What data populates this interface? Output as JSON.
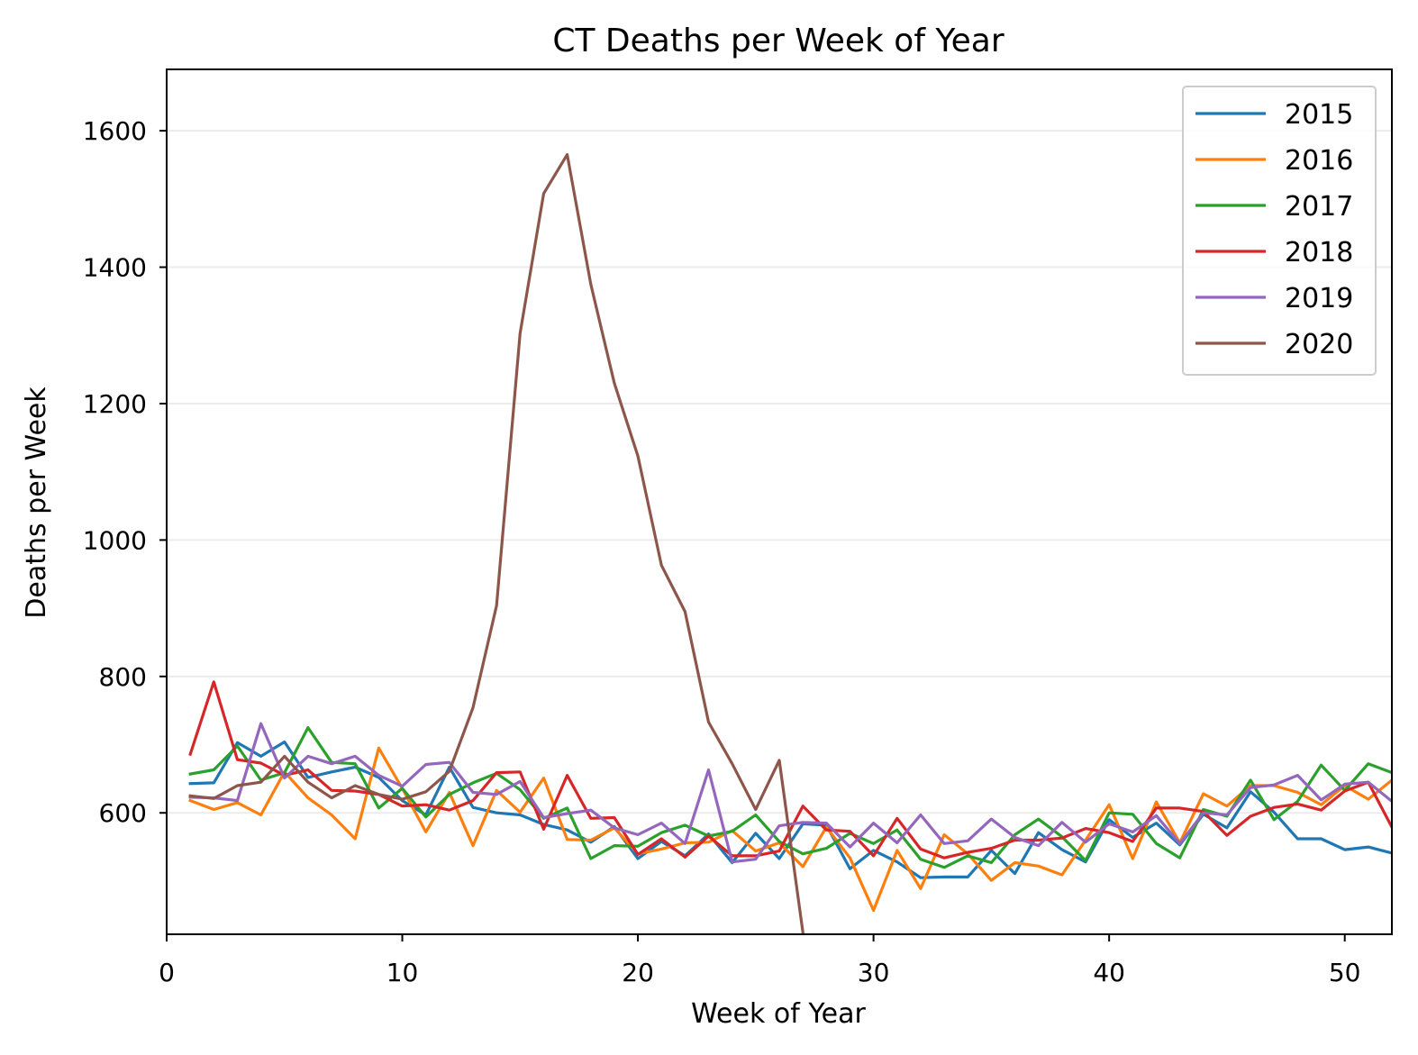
{
  "chart_data": {
    "type": "line",
    "title": "CT Deaths per Week of Year",
    "xlabel": "Week of Year",
    "ylabel": "Deaths per Week",
    "xlim": [
      0,
      52
    ],
    "ylim": [
      422,
      1690
    ],
    "xticks": [
      0,
      10,
      20,
      30,
      40,
      50
    ],
    "yticks": [
      600,
      800,
      1000,
      1200,
      1400,
      1600
    ],
    "grid": "horizontal",
    "legend_position": "top-right",
    "series": [
      {
        "name": "2015",
        "color": "#1f77b4",
        "x": [
          1,
          2,
          3,
          4,
          5,
          6,
          7,
          8,
          9,
          10,
          11,
          12,
          13,
          14,
          15,
          16,
          17,
          18,
          19,
          20,
          21,
          22,
          23,
          24,
          25,
          26,
          27,
          28,
          29,
          30,
          31,
          32,
          33,
          34,
          35,
          36,
          37,
          38,
          39,
          40,
          41,
          42,
          43,
          44,
          45,
          46,
          47,
          48,
          49,
          50,
          51,
          52
        ],
        "values": [
          643,
          644,
          703,
          683,
          704,
          652,
          660,
          667,
          652,
          618,
          597,
          667,
          608,
          600,
          597,
          583,
          575,
          557,
          580,
          533,
          558,
          537,
          569,
          527,
          570,
          533,
          584,
          582,
          518,
          545,
          528,
          505,
          506,
          506,
          545,
          511,
          571,
          546,
          528,
          590,
          564,
          585,
          553,
          598,
          578,
          631,
          601,
          562,
          562,
          546,
          550,
          541
        ]
      },
      {
        "name": "2016",
        "color": "#ff7f0e",
        "x": [
          1,
          2,
          3,
          4,
          5,
          6,
          7,
          8,
          9,
          10,
          11,
          12,
          13,
          14,
          15,
          16,
          17,
          18,
          19,
          20,
          21,
          22,
          23,
          24,
          25,
          26,
          27,
          28,
          29,
          30,
          31,
          32,
          33,
          34,
          35,
          36,
          37,
          38,
          39,
          40,
          41,
          42,
          43,
          44,
          45,
          46,
          47,
          48,
          49,
          50,
          51,
          52
        ],
        "values": [
          618,
          605,
          615,
          597,
          660,
          622,
          597,
          562,
          695,
          636,
          572,
          630,
          552,
          633,
          601,
          651,
          561,
          560,
          578,
          540,
          547,
          556,
          557,
          574,
          544,
          556,
          521,
          579,
          534,
          457,
          545,
          489,
          568,
          540,
          501,
          527,
          522,
          509,
          560,
          612,
          533,
          616,
          556,
          628,
          610,
          640,
          640,
          630,
          612,
          640,
          620,
          648
        ]
      },
      {
        "name": "2017",
        "color": "#2ca02c",
        "x": [
          1,
          2,
          3,
          4,
          5,
          6,
          7,
          8,
          9,
          10,
          11,
          12,
          13,
          14,
          15,
          16,
          17,
          18,
          19,
          20,
          21,
          22,
          23,
          24,
          25,
          26,
          27,
          28,
          29,
          30,
          31,
          32,
          33,
          34,
          35,
          36,
          37,
          38,
          39,
          40,
          41,
          42,
          43,
          44,
          45,
          46,
          47,
          48,
          49,
          50,
          51,
          52
        ],
        "values": [
          657,
          663,
          698,
          648,
          659,
          725,
          674,
          672,
          607,
          636,
          594,
          627,
          644,
          658,
          634,
          592,
          607,
          533,
          552,
          551,
          571,
          582,
          566,
          573,
          597,
          558,
          540,
          548,
          570,
          555,
          575,
          532,
          520,
          537,
          527,
          568,
          591,
          565,
          530,
          600,
          598,
          555,
          534,
          605,
          595,
          648,
          590,
          617,
          670,
          633,
          672,
          659
        ]
      },
      {
        "name": "2018",
        "color": "#d62728",
        "x": [
          1,
          2,
          3,
          4,
          5,
          6,
          7,
          8,
          9,
          10,
          11,
          12,
          13,
          14,
          15,
          16,
          17,
          18,
          19,
          20,
          21,
          22,
          23,
          24,
          25,
          26,
          27,
          28,
          29,
          30,
          31,
          32,
          33,
          34,
          35,
          36,
          37,
          38,
          39,
          40,
          41,
          42,
          43,
          44,
          45,
          46,
          47,
          48,
          49,
          50,
          51,
          52
        ],
        "values": [
          686,
          792,
          678,
          673,
          655,
          663,
          633,
          632,
          627,
          610,
          612,
          604,
          618,
          659,
          660,
          576,
          655,
          592,
          593,
          539,
          562,
          535,
          566,
          537,
          537,
          544,
          610,
          575,
          573,
          537,
          592,
          547,
          534,
          542,
          548,
          560,
          560,
          563,
          577,
          571,
          558,
          607,
          607,
          602,
          567,
          595,
          608,
          613,
          604,
          632,
          645,
          579
        ]
      },
      {
        "name": "2019",
        "color": "#9467bd",
        "x": [
          1,
          2,
          3,
          4,
          5,
          6,
          7,
          8,
          9,
          10,
          11,
          12,
          13,
          14,
          15,
          16,
          17,
          18,
          19,
          20,
          21,
          22,
          23,
          24,
          25,
          26,
          27,
          28,
          29,
          30,
          31,
          32,
          33,
          34,
          35,
          36,
          37,
          38,
          39,
          40,
          41,
          42,
          43,
          44,
          45,
          46,
          47,
          48,
          49,
          50,
          51,
          52
        ],
        "values": [
          623,
          622,
          618,
          731,
          651,
          683,
          672,
          683,
          655,
          639,
          671,
          674,
          630,
          627,
          646,
          593,
          599,
          604,
          578,
          568,
          585,
          555,
          663,
          528,
          532,
          581,
          586,
          585,
          550,
          585,
          556,
          597,
          555,
          559,
          591,
          564,
          552,
          586,
          557,
          584,
          572,
          596,
          555,
          600,
          597,
          637,
          641,
          655,
          619,
          642,
          645,
          617
        ]
      },
      {
        "name": "2020",
        "color": "#8c564b",
        "x": [
          1,
          2,
          3,
          4,
          5,
          6,
          7,
          8,
          9,
          10,
          11,
          12,
          13,
          14,
          15,
          16,
          17,
          18,
          19,
          20,
          21,
          22,
          23,
          24,
          25,
          26,
          27
        ],
        "values": [
          625,
          621,
          640,
          645,
          683,
          645,
          622,
          640,
          627,
          620,
          631,
          661,
          754,
          904,
          1303,
          1508,
          1565,
          1375,
          1230,
          1123,
          963,
          895,
          733,
          672,
          605,
          677,
          425
        ]
      }
    ]
  }
}
